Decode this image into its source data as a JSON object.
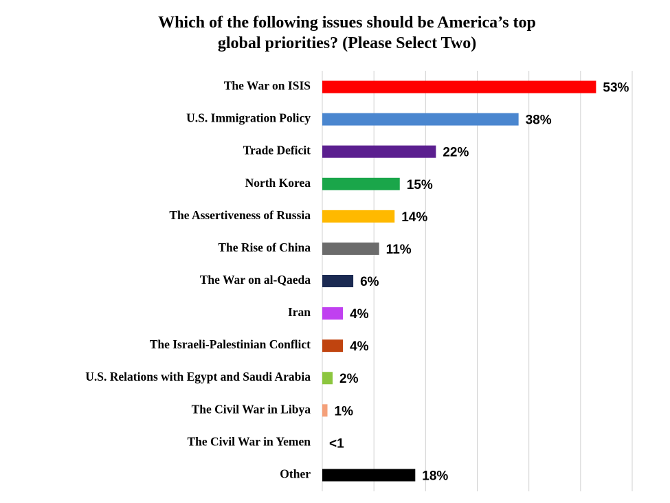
{
  "chart_data": {
    "type": "hbar",
    "title": [
      "Which of the following issues should be America’s top",
      "global priorities? (Please Select Two)"
    ],
    "categories": [
      "The War on ISIS",
      "U.S. Immigration Policy",
      "Trade Deficit",
      "North Korea",
      "The Assertiveness of Russia",
      "The Rise of China",
      "The War on al-Qaeda",
      "Iran",
      "The Israeli-Palestinian Conflict",
      "U.S. Relations with Egypt and Saudi Arabia",
      "The Civil War in Libya",
      "The Civil War in Yemen",
      "Other"
    ],
    "values": [
      53,
      38,
      22,
      15,
      14,
      11,
      6,
      4,
      4,
      2,
      1,
      0,
      18
    ],
    "value_labels": [
      "53%",
      "38%",
      "22%",
      "15%",
      "14%",
      "11%",
      "6%",
      "4%",
      "4%",
      "2%",
      "1%",
      "<1",
      "18%"
    ],
    "colors": [
      "#ff0000",
      "#4a86cf",
      "#5b1f8f",
      "#1aa64a",
      "#ffb900",
      "#6b6b6b",
      "#1b2a52",
      "#c040f0",
      "#c0440f",
      "#8cc63f",
      "#f4a07a",
      "#000000",
      "#000000"
    ],
    "xlim": [
      0,
      60
    ],
    "xticks": [
      0,
      10,
      20,
      30,
      40,
      50,
      60
    ],
    "grid": true
  }
}
